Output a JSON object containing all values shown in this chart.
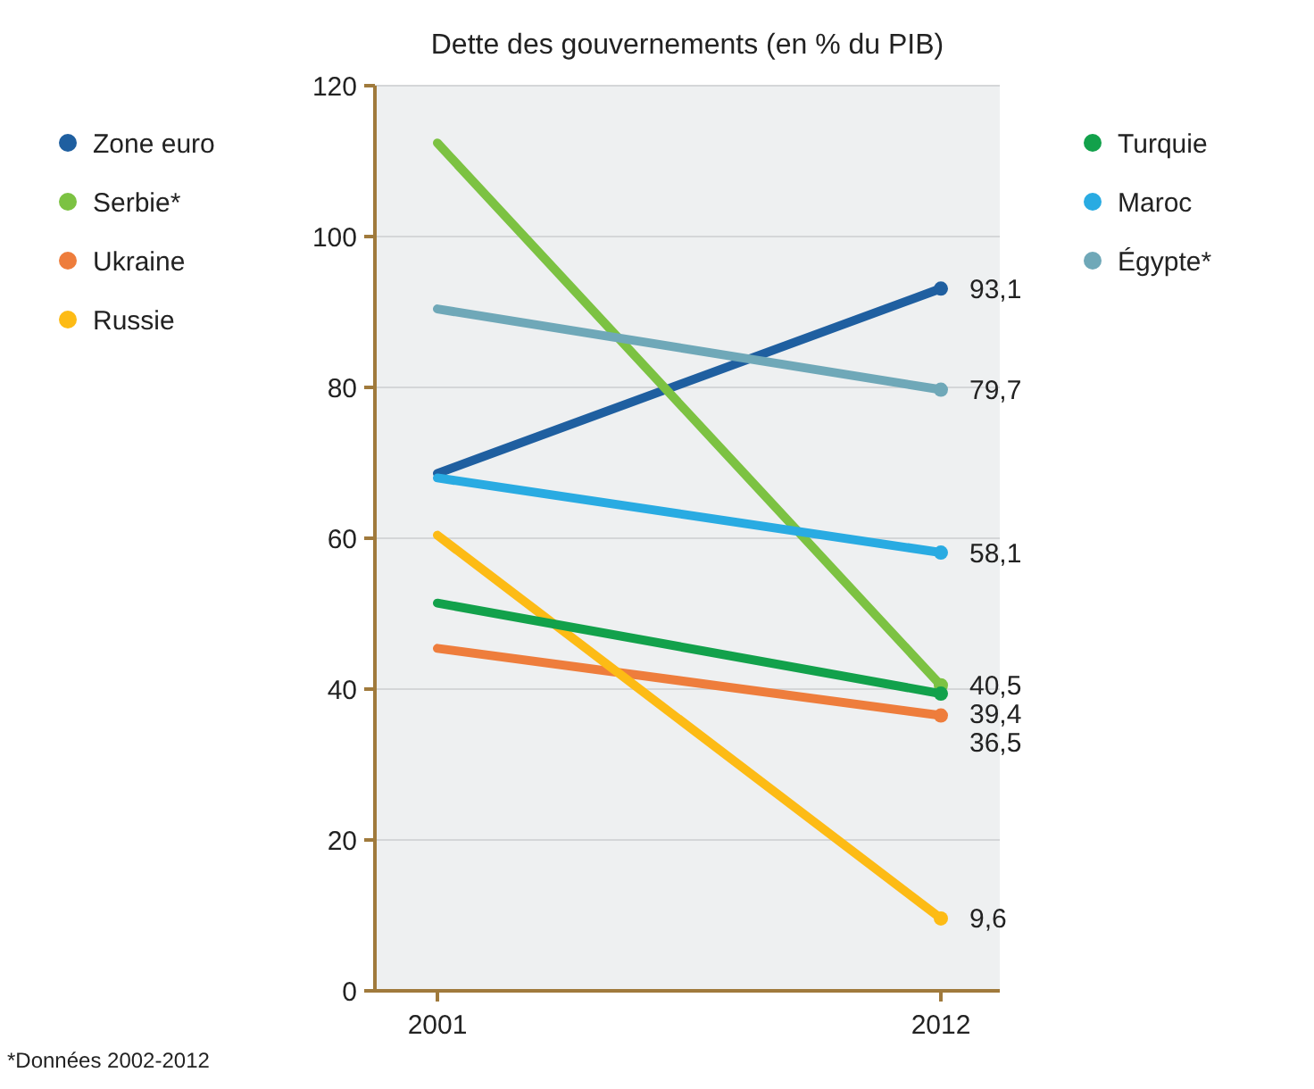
{
  "chart_data": {
    "type": "line",
    "title": "Dette des gouvernements (en % du PIB)",
    "categories": [
      "2001",
      "2012"
    ],
    "series": [
      {
        "name": "Zone euro",
        "color": "#1f5fa0",
        "values": [
          68.6,
          93.1
        ],
        "value_labels": [
          null,
          "93,1"
        ]
      },
      {
        "name": "Serbie*",
        "color": "#7cc242",
        "values": [
          112.4,
          40.5
        ],
        "value_labels": [
          null,
          "40,5"
        ]
      },
      {
        "name": "Ukraine",
        "color": "#ee7d3c",
        "values": [
          45.4,
          36.5
        ],
        "value_labels": [
          null,
          "36,5"
        ]
      },
      {
        "name": "Russie",
        "color": "#fdbb15",
        "values": [
          60.4,
          9.6
        ],
        "value_labels": [
          null,
          "9,6"
        ]
      },
      {
        "name": "Turquie",
        "color": "#12a14b",
        "values": [
          51.4,
          39.4
        ],
        "value_labels": [
          null,
          "39,4"
        ]
      },
      {
        "name": "Maroc",
        "color": "#29abe2",
        "values": [
          68.0,
          58.1
        ],
        "value_labels": [
          null,
          "58,1"
        ]
      },
      {
        "name": "Égypte*",
        "color": "#6fa8b8",
        "values": [
          90.4,
          79.7
        ],
        "value_labels": [
          null,
          "79,7"
        ]
      }
    ],
    "ylim": [
      0,
      120
    ],
    "yticks": [
      0,
      20,
      40,
      60,
      80,
      100,
      120
    ],
    "grid": "y",
    "legend": "top",
    "marker": "circle",
    "line_style": "solid",
    "annotations": [
      "*Données 2002-2012"
    ]
  }
}
